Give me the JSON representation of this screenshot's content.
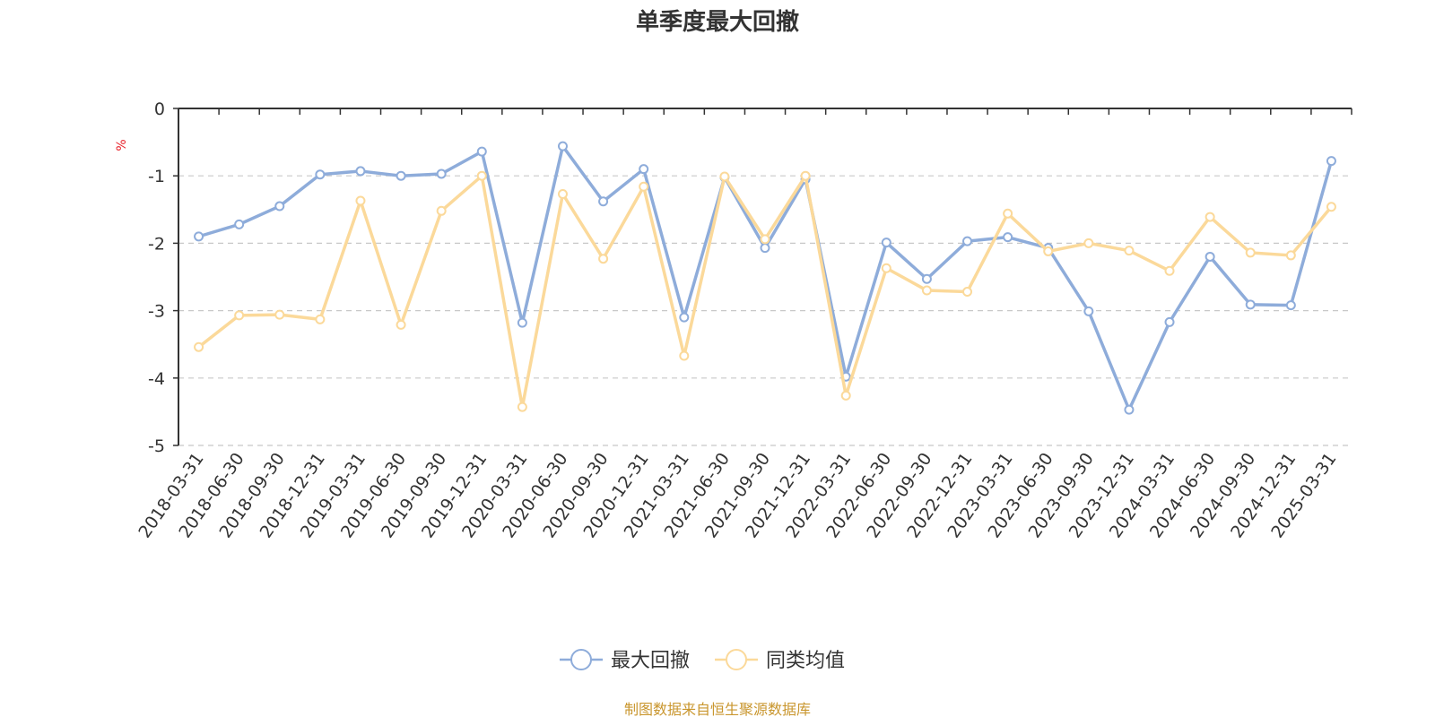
{
  "chart_data": {
    "type": "line",
    "title": "单季度最大回撤",
    "unit_label": "%",
    "ylim": [
      -5,
      0
    ],
    "y_ticks": [
      "0",
      "-1",
      "-2",
      "-3",
      "-4",
      "-5"
    ],
    "y_tick_values": [
      0,
      -1,
      -2,
      -3,
      -4,
      -5
    ],
    "grid": "horizontal dashed",
    "legend_position": "bottom-center",
    "categories": [
      "2018-03-31",
      "2018-06-30",
      "2018-09-30",
      "2018-12-31",
      "2019-03-31",
      "2019-06-30",
      "2019-09-30",
      "2019-12-31",
      "2020-03-31",
      "2020-06-30",
      "2020-09-30",
      "2020-12-31",
      "2021-03-31",
      "2021-06-30",
      "2021-09-30",
      "2021-12-31",
      "2022-03-31",
      "2022-06-30",
      "2022-09-30",
      "2022-12-31",
      "2023-03-31",
      "2023-06-30",
      "2023-09-30",
      "2023-12-31",
      "2024-03-31",
      "2024-06-30",
      "2024-09-30",
      "2024-12-31",
      "2025-03-31"
    ],
    "series": [
      {
        "name": "最大回撤",
        "color": "#8eacda",
        "values": [
          -1.9,
          -1.72,
          -1.45,
          -0.98,
          -0.93,
          -1.0,
          -0.97,
          -0.64,
          -3.18,
          -0.56,
          -1.38,
          -0.9,
          -3.1,
          -1.02,
          -2.07,
          -1.05,
          -3.98,
          -1.99,
          -2.53,
          -1.97,
          -1.91,
          -2.07,
          -3.01,
          -4.47,
          -3.17,
          -2.2,
          -2.91,
          -2.92,
          -0.78
        ]
      },
      {
        "name": "同类均值",
        "color": "#fbd99a",
        "values": [
          -3.54,
          -3.07,
          -3.06,
          -3.13,
          -1.37,
          -3.21,
          -1.52,
          -1.0,
          -4.43,
          -1.27,
          -2.23,
          -1.16,
          -3.67,
          -1.01,
          -1.94,
          -1.0,
          -4.26,
          -2.37,
          -2.7,
          -2.72,
          -1.56,
          -2.12,
          -2.0,
          -2.11,
          -2.41,
          -1.61,
          -2.14,
          -2.18,
          -1.46
        ]
      }
    ]
  },
  "footer": {
    "source": "制图数据来自恒生聚源数据库"
  }
}
